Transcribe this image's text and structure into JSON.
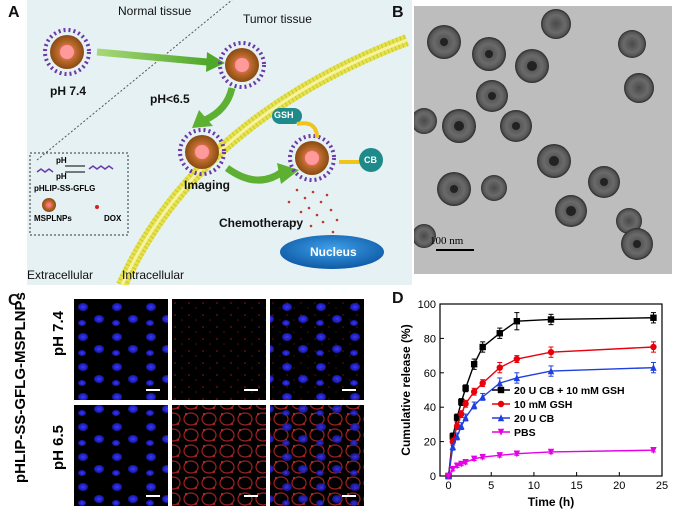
{
  "panel_a": {
    "label": "A",
    "normal_tissue": "Normal tissue",
    "tumor_tissue": "Tumor tissue",
    "ph_normal": "pH  7.4",
    "ph_tumor": "pH<6.5",
    "gsh": "GSH",
    "cb": "CB",
    "imaging": "Imaging",
    "chemotherapy": "Chemotherapy",
    "nucleus": "Nucleus",
    "extracellular": "Extracellular",
    "intracellular": "Intracellular",
    "legend": {
      "ph_top": "pH",
      "ph_bottom": "pH",
      "probe": "pHLIP-SS-GFLG",
      "mspl": "MSPLNPs",
      "dox": "DOX"
    }
  },
  "panel_b": {
    "label": "B",
    "scale": "100 nm"
  },
  "panel_c": {
    "label": "C",
    "row_title": "pHLIP-SS-GFLG-MSPLNPs",
    "rows": [
      "pH 7.4",
      "pH 6.5"
    ]
  },
  "panel_d": {
    "label": "D"
  },
  "colors": {
    "black_series": "#000000",
    "red_series": "#e8000b",
    "blue_series": "#1f3fe0",
    "magenta_series": "#e600e6",
    "nucleus_blue": "#1a73c9",
    "membrane_yellow": "#e6e24a"
  },
  "chart_data": {
    "type": "line",
    "xlabel": "Time (h)",
    "ylabel": "Cumulative release (%)",
    "xlim": [
      -1,
      25
    ],
    "ylim": [
      0,
      100
    ],
    "xticks": [
      0,
      5,
      10,
      15,
      20,
      25
    ],
    "yticks": [
      0,
      20,
      40,
      60,
      80,
      100
    ],
    "grid": false,
    "legend_position": "center-right",
    "series": [
      {
        "name": "20 U CB + 10 mM GSH",
        "color": "#000000",
        "marker": "square",
        "x": [
          0,
          0.5,
          1,
          1.5,
          2,
          3,
          4,
          6,
          8,
          12,
          24
        ],
        "y": [
          0,
          23,
          34,
          43,
          51,
          65,
          75,
          83,
          90,
          91,
          92
        ],
        "err": [
          0,
          2,
          2,
          2,
          2,
          3,
          3,
          3,
          5,
          3,
          3
        ]
      },
      {
        "name": "10 mM GSH",
        "color": "#e8000b",
        "marker": "circle",
        "x": [
          0,
          0.5,
          1,
          1.5,
          2,
          3,
          4,
          6,
          8,
          12,
          24
        ],
        "y": [
          0,
          20,
          29,
          36,
          42,
          49,
          54,
          63,
          68,
          72,
          75
        ],
        "err": [
          0,
          2,
          2,
          2,
          2,
          2,
          2,
          3,
          2,
          3,
          3
        ]
      },
      {
        "name": "20 U CB",
        "color": "#1f3fe0",
        "marker": "triangle",
        "x": [
          0,
          0.5,
          1,
          1.5,
          2,
          3,
          4,
          6,
          8,
          12,
          24
        ],
        "y": [
          0,
          17,
          23,
          29,
          34,
          41,
          46,
          54,
          57,
          61,
          63
        ],
        "err": [
          0,
          2,
          2,
          2,
          2,
          2,
          2,
          3,
          3,
          3,
          3
        ]
      },
      {
        "name": "PBS",
        "color": "#e600e6",
        "marker": "triangle-down",
        "x": [
          0,
          0.5,
          1,
          1.5,
          2,
          3,
          4,
          6,
          8,
          12,
          24
        ],
        "y": [
          0,
          4,
          6,
          7,
          8,
          10,
          11,
          12,
          13,
          14,
          15
        ],
        "err": [
          0,
          1,
          1,
          1,
          1,
          1,
          1,
          1,
          1,
          1,
          1
        ]
      }
    ]
  }
}
